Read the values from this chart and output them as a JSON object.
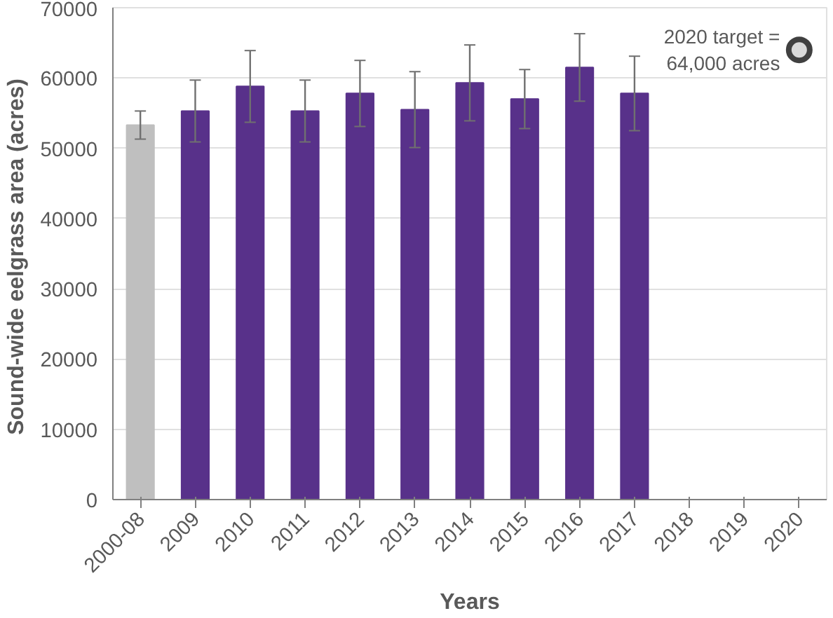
{
  "chart_data": {
    "type": "bar",
    "xlabel": "Years",
    "ylabel": "Sound-wide  eelgrass area (acres)",
    "categories": [
      "2000-08",
      "2009",
      "2010",
      "2011",
      "2012",
      "2013",
      "2014",
      "2015",
      "2016",
      "2017",
      "2018",
      "2019",
      "2020"
    ],
    "values": [
      53300,
      55300,
      58800,
      55300,
      57800,
      55500,
      59300,
      57000,
      61500,
      57800,
      null,
      null,
      null
    ],
    "errors": [
      2000,
      4400,
      5100,
      4400,
      4700,
      5400,
      5400,
      4200,
      4800,
      5300,
      null,
      null,
      null
    ],
    "colors": [
      "#bfbfbf",
      "#58318a",
      "#58318a",
      "#58318a",
      "#58318a",
      "#58318a",
      "#58318a",
      "#58318a",
      "#58318a",
      "#58318a",
      "#58318a",
      "#58318a",
      "#58318a"
    ],
    "annotations": [
      {
        "text": "2020 target =\n64,000 acres",
        "x": "2020",
        "y": 64000
      }
    ],
    "ylim": [
      0,
      70000
    ],
    "yticks": [
      0,
      10000,
      20000,
      30000,
      40000,
      50000,
      60000,
      70000
    ],
    "grid": "y",
    "marker": "circle"
  }
}
